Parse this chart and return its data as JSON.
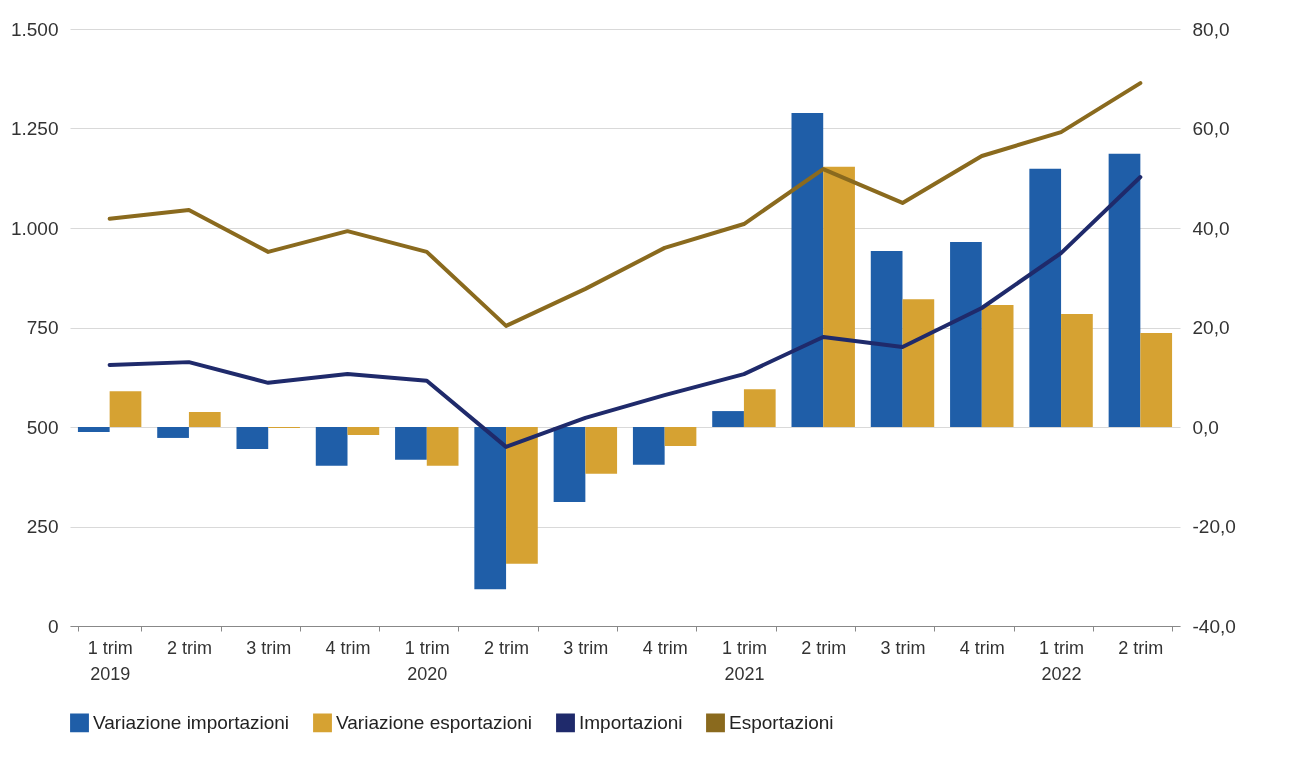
{
  "chart_data": {
    "type": "bar",
    "categories": [
      "1 trim\n2019",
      "2 trim",
      "3 trim",
      "4 trim",
      "1 trim\n2020",
      "2 trim",
      "3 trim",
      "4 trim",
      "1 trim\n2021",
      "2 trim",
      "3 trim",
      "4 trim",
      "1 trim\n2022",
      "2 trim"
    ],
    "series": [
      {
        "name": "Variazione importazioni",
        "axis": "y2",
        "color": "#1f5ea8",
        "values": [
          -1.0,
          -2.2,
          -4.4,
          -7.8,
          -6.6,
          -32.6,
          -15.1,
          -7.6,
          3.2,
          63.1,
          35.4,
          37.2,
          51.9,
          54.9
        ]
      },
      {
        "name": "Variazione esportazioni",
        "axis": "y2",
        "color": "#d6a232",
        "values": [
          7.2,
          3.0,
          -0.2,
          -1.6,
          -7.8,
          -27.5,
          -9.4,
          -3.8,
          7.6,
          52.3,
          25.7,
          24.5,
          22.7,
          18.9
        ]
      },
      {
        "name": "Importazioni",
        "type": "line",
        "color": "#1f2a6b",
        "values": [
          656,
          663,
          611,
          633,
          616,
          450,
          523,
          580,
          633,
          726,
          701,
          799,
          937,
          1128
        ]
      },
      {
        "name": "Esportazioni",
        "type": "line",
        "color": "#8a6a1e",
        "values": [
          1023,
          1045,
          940,
          992,
          940,
          754,
          847,
          950,
          1010,
          1148,
          1063,
          1181,
          1241,
          1364
        ]
      }
    ],
    "ylim": [
      0,
      1500
    ],
    "yticks": [
      0,
      {
        "value": 250,
        "label": "250"
      },
      {
        "value": 500,
        "label": "500"
      },
      {
        "value": 750,
        "label": "750"
      },
      {
        "value": 1000,
        "label": "1.000"
      },
      {
        "value": 1250,
        "label": "1.250"
      },
      {
        "value": 1500,
        "label": "1.500"
      }
    ],
    "y2lim": [
      -40,
      80
    ],
    "y2ticks": [
      {
        "value": -40,
        "label": "-40,0"
      },
      {
        "value": -20,
        "label": "-20,0"
      },
      {
        "value": 0,
        "label": "0,0"
      },
      {
        "value": 20,
        "label": "20,0"
      },
      {
        "value": 40,
        "label": "40,0"
      },
      {
        "value": 60,
        "label": "60,0"
      },
      {
        "value": 80,
        "label": "80,0"
      }
    ],
    "grid": "y",
    "legend": "bottom",
    "line_style": "solid"
  }
}
